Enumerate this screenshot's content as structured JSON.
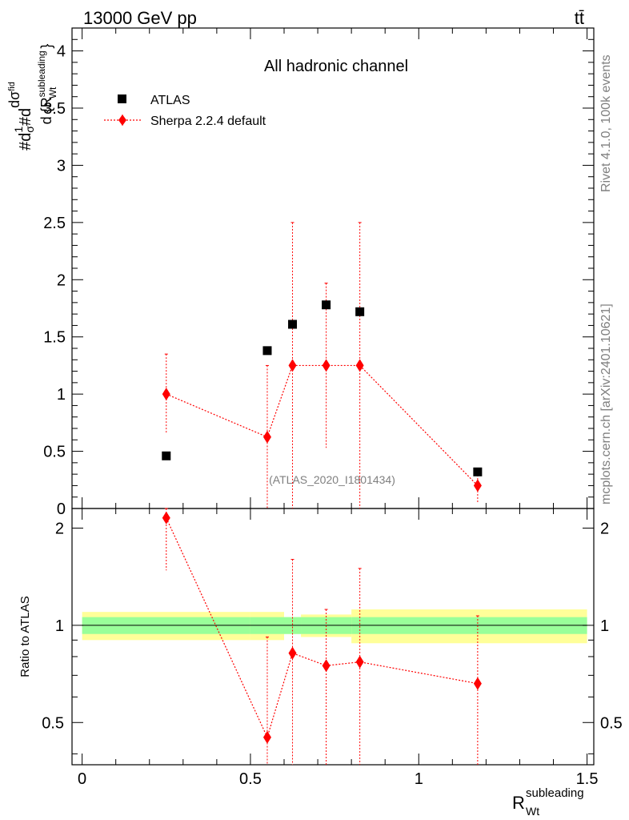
{
  "header": {
    "energy_label": "13000 GeV pp",
    "process_label": "tt̄"
  },
  "side_notes": {
    "rivet_version": "Rivet 4.1.0,  100k events",
    "source": "mcplots.cern.ch [arXiv:2401.10621]"
  },
  "chart_data": [
    {
      "type": "scatter",
      "panel": "main",
      "title": "All hadronic channel",
      "watermark": "(ATLAS_2020_I1801434)",
      "xlabel": "R_Wt^subleading",
      "ylabel": "#d1/σ#dσ^fid / d{R_Wt^subleading}",
      "xlim": [
        -0.03,
        1.52
      ],
      "ylim": [
        0,
        4.2
      ],
      "yticks": [
        "0",
        "0.5",
        "1",
        "1.5",
        "2",
        "2.5",
        "3",
        "3.5",
        "4"
      ],
      "legend_position": "top-left",
      "series": [
        {
          "name": "ATLAS",
          "color": "#000000",
          "marker": "square",
          "x": [
            0.25,
            0.55,
            0.625,
            0.725,
            0.825,
            1.175
          ],
          "y": [
            0.46,
            1.38,
            1.61,
            1.78,
            1.72,
            0.32
          ]
        },
        {
          "name": "Sherpa 2.2.4 default",
          "color": "#ff0000",
          "marker": "diamond",
          "line": "dotted",
          "x": [
            0.25,
            0.55,
            0.625,
            0.725,
            0.825,
            1.175
          ],
          "y": [
            1.0,
            0.625,
            1.25,
            1.25,
            1.25,
            0.2
          ],
          "yerr_low": [
            0.65,
            0.0,
            0.0,
            0.53,
            0.0,
            0.05
          ],
          "yerr_high": [
            1.35,
            1.25,
            2.5,
            1.97,
            2.5,
            0.35
          ]
        }
      ]
    },
    {
      "type": "scatter",
      "panel": "ratio",
      "ylabel": "Ratio to ATLAS",
      "xlabel": "R_Wt^subleading",
      "xlim": [
        -0.03,
        1.52
      ],
      "ylim": [
        0.37,
        2.3
      ],
      "xticks": [
        "0",
        "0.5",
        "1",
        "1.5"
      ],
      "yticks": [
        "0.5",
        "1",
        "2"
      ],
      "reference_line": 1.0,
      "uncertainty_bands": {
        "x_edges": [
          0.0,
          0.5,
          0.6,
          0.65,
          0.8,
          1.5
        ],
        "inner_low": [
          0.94,
          0.94,
          0.94,
          0.94,
          0.94
        ],
        "inner_high": [
          1.06,
          1.06,
          1.06,
          1.06,
          1.06
        ],
        "outer_low": [
          0.9,
          0.9,
          0.94,
          0.92,
          0.88
        ],
        "outer_high": [
          1.1,
          1.1,
          1.06,
          1.08,
          1.12
        ],
        "inner_color": "#99ff99",
        "outer_color": "#ffff99"
      },
      "series": [
        {
          "name": "Sherpa 2.2.4 default / ATLAS",
          "color": "#ff0000",
          "marker": "diamond",
          "x": [
            0.25,
            0.55,
            0.625,
            0.725,
            0.825,
            1.175
          ],
          "y": [
            2.15,
            0.45,
            0.82,
            0.75,
            0.77,
            0.66
          ],
          "yerr_low": [
            1.48,
            0.0,
            0.0,
            0.0,
            0.0,
            0.0
          ],
          "yerr_high": [
            3.0,
            0.92,
            1.6,
            1.12,
            1.5,
            1.07
          ]
        }
      ]
    }
  ]
}
